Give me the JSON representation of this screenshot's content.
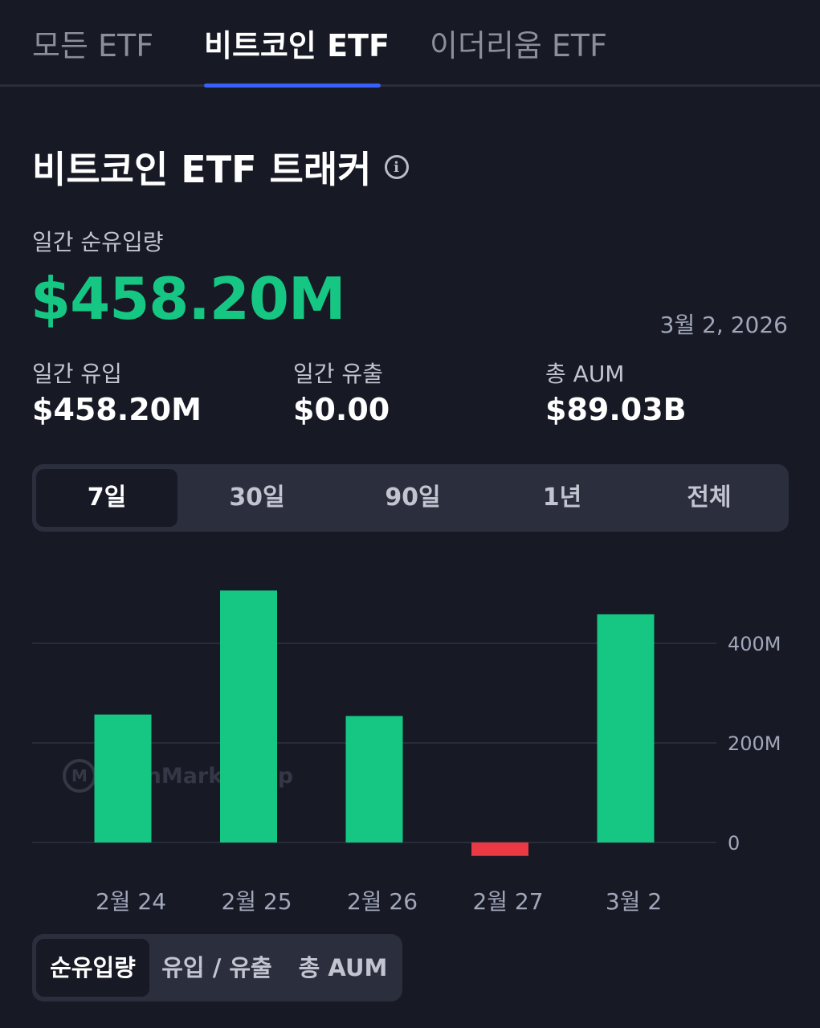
{
  "tabs": [
    {
      "label": "모든 ETF"
    },
    {
      "label": "비트코인 ETF"
    },
    {
      "label": "이더리움 ETF"
    }
  ],
  "active_tab": "비트코인 ETF",
  "header": {
    "title": "비트코인 ETF 트래커",
    "info_icon": "info-circle-icon"
  },
  "summary": {
    "net_flow_label": "일간 순유입량",
    "net_flow_value": "$458.20M",
    "date": "3월 2, 2026"
  },
  "stats": [
    {
      "label": "일간 유입",
      "value": "$458.20M"
    },
    {
      "label": "일간 유출",
      "value": "$0.00"
    },
    {
      "label": "총 AUM",
      "value": "$89.03B"
    }
  ],
  "ranges": [
    {
      "label": "7일"
    },
    {
      "label": "30일"
    },
    {
      "label": "90일"
    },
    {
      "label": "1년"
    },
    {
      "label": "전체"
    }
  ],
  "active_range": "7일",
  "watermark": "CoinMarketCap",
  "chart_data": {
    "type": "bar",
    "categories": [
      "2월 24",
      "2월 25",
      "2월 26",
      "2월 27",
      "3월 2"
    ],
    "values": [
      257000000,
      506000000,
      254000000,
      -27000000,
      458200000
    ],
    "ylim": [
      -70000000,
      570000000
    ],
    "yticks": [
      {
        "value": 0,
        "label": "0"
      },
      {
        "value": 200000000,
        "label": "200M"
      },
      {
        "value": 400000000,
        "label": "400M"
      }
    ],
    "positive_color": "#16c784",
    "negative_color": "#ea3943",
    "grid": true
  },
  "views": [
    {
      "label": "순유입량"
    },
    {
      "label": "유입 / 유출"
    },
    {
      "label": "총 AUM"
    }
  ],
  "active_view": "순유입량"
}
